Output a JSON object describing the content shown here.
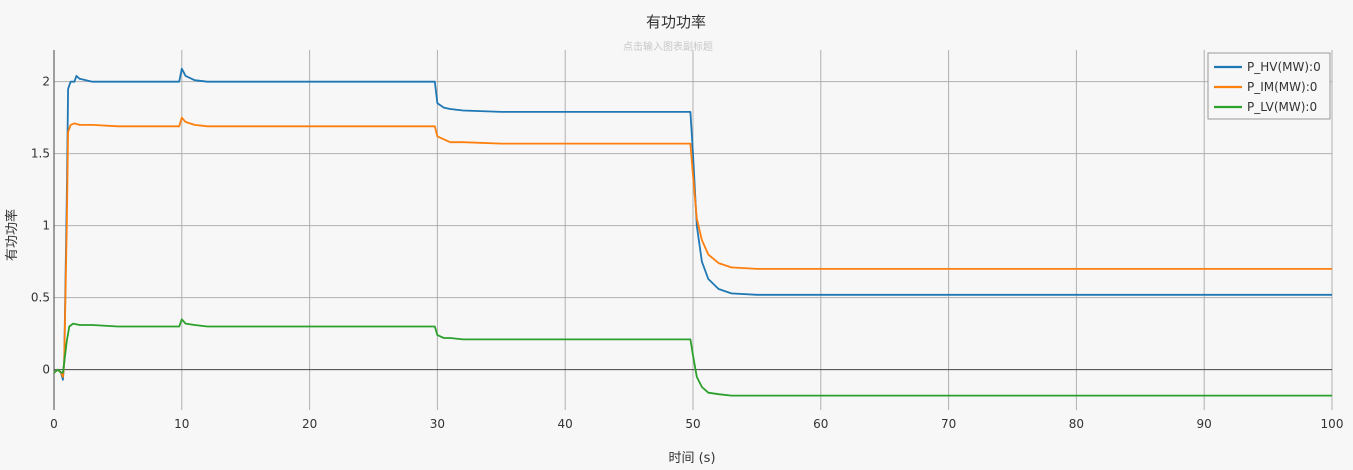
{
  "chart_data": {
    "type": "line",
    "title": "有功功率",
    "subtitle": "点击输入图表副标题",
    "xlabel": "时间 (s)",
    "ylabel": "有功功率",
    "xlim": [
      0,
      100
    ],
    "ylim": [
      -0.28,
      2.22
    ],
    "x_ticks": [
      0,
      10,
      20,
      30,
      40,
      50,
      60,
      70,
      80,
      90,
      100
    ],
    "y_ticks": [
      0,
      0.5,
      1,
      1.5,
      2
    ],
    "x_tick_labels": [
      "0",
      "10",
      "20",
      "30",
      "40",
      "50",
      "60",
      "70",
      "80",
      "90",
      "100"
    ],
    "y_tick_labels": [
      "0",
      "0.5",
      "1",
      "1.5",
      "2"
    ],
    "grid": true,
    "legend_position": "top-right",
    "series": [
      {
        "name": "P_HV(MW):0",
        "color": "#1f77b4",
        "x": [
          0,
          0.3,
          0.55,
          0.7,
          0.8,
          1.0,
          1.1,
          1.3,
          1.6,
          1.75,
          2.0,
          3,
          5,
          9.8,
          10.0,
          10.3,
          11,
          12,
          15,
          20,
          25,
          29.8,
          30.0,
          30.5,
          31,
          32,
          35,
          40,
          45,
          49.8,
          50.0,
          50.3,
          50.7,
          51.2,
          52,
          53,
          55,
          60,
          70,
          80,
          90,
          100
        ],
        "y": [
          -0.02,
          0.0,
          -0.02,
          -0.07,
          0.05,
          1.2,
          1.95,
          2.0,
          2.0,
          2.04,
          2.02,
          2.0,
          2.0,
          2.0,
          2.09,
          2.04,
          2.01,
          2.0,
          2.0,
          2.0,
          2.0,
          2.0,
          1.85,
          1.82,
          1.81,
          1.8,
          1.79,
          1.79,
          1.79,
          1.79,
          1.5,
          1.0,
          0.75,
          0.63,
          0.56,
          0.53,
          0.52,
          0.52,
          0.52,
          0.52,
          0.52,
          0.52
        ]
      },
      {
        "name": "P_IM(MW):0",
        "color": "#ff7f0e",
        "x": [
          0,
          0.3,
          0.55,
          0.7,
          0.8,
          1.0,
          1.1,
          1.3,
          1.6,
          2.0,
          3,
          5,
          9.8,
          10.0,
          10.3,
          11,
          12,
          15,
          20,
          25,
          29.8,
          30.0,
          30.5,
          31,
          32,
          35,
          40,
          45,
          49.8,
          50.0,
          50.3,
          50.7,
          51.2,
          52,
          53,
          55,
          60,
          70,
          80,
          90,
          100
        ],
        "y": [
          -0.02,
          0.0,
          -0.02,
          -0.05,
          0.05,
          1.0,
          1.65,
          1.7,
          1.71,
          1.7,
          1.7,
          1.69,
          1.69,
          1.75,
          1.72,
          1.7,
          1.69,
          1.69,
          1.69,
          1.69,
          1.69,
          1.62,
          1.6,
          1.58,
          1.58,
          1.57,
          1.57,
          1.57,
          1.57,
          1.35,
          1.05,
          0.9,
          0.8,
          0.74,
          0.71,
          0.7,
          0.7,
          0.7,
          0.7,
          0.7,
          0.7
        ]
      },
      {
        "name": "P_LV(MW):0",
        "color": "#2ca02c",
        "x": [
          0,
          0.3,
          0.55,
          0.7,
          0.8,
          1.0,
          1.2,
          1.5,
          2.0,
          3,
          5,
          9.8,
          10.0,
          10.3,
          11,
          12,
          15,
          20,
          25,
          29.8,
          30.0,
          30.5,
          31,
          32,
          35,
          40,
          45,
          49.8,
          50.0,
          50.3,
          50.7,
          51.2,
          52,
          53,
          55,
          60,
          70,
          80,
          90,
          100
        ],
        "y": [
          -0.02,
          0.0,
          -0.02,
          -0.02,
          0.05,
          0.2,
          0.3,
          0.32,
          0.31,
          0.31,
          0.3,
          0.3,
          0.35,
          0.32,
          0.31,
          0.3,
          0.3,
          0.3,
          0.3,
          0.3,
          0.24,
          0.22,
          0.22,
          0.21,
          0.21,
          0.21,
          0.21,
          0.21,
          0.1,
          -0.05,
          -0.12,
          -0.16,
          -0.17,
          -0.18,
          -0.18,
          -0.18,
          -0.18,
          -0.18,
          -0.18,
          -0.18
        ]
      }
    ]
  }
}
